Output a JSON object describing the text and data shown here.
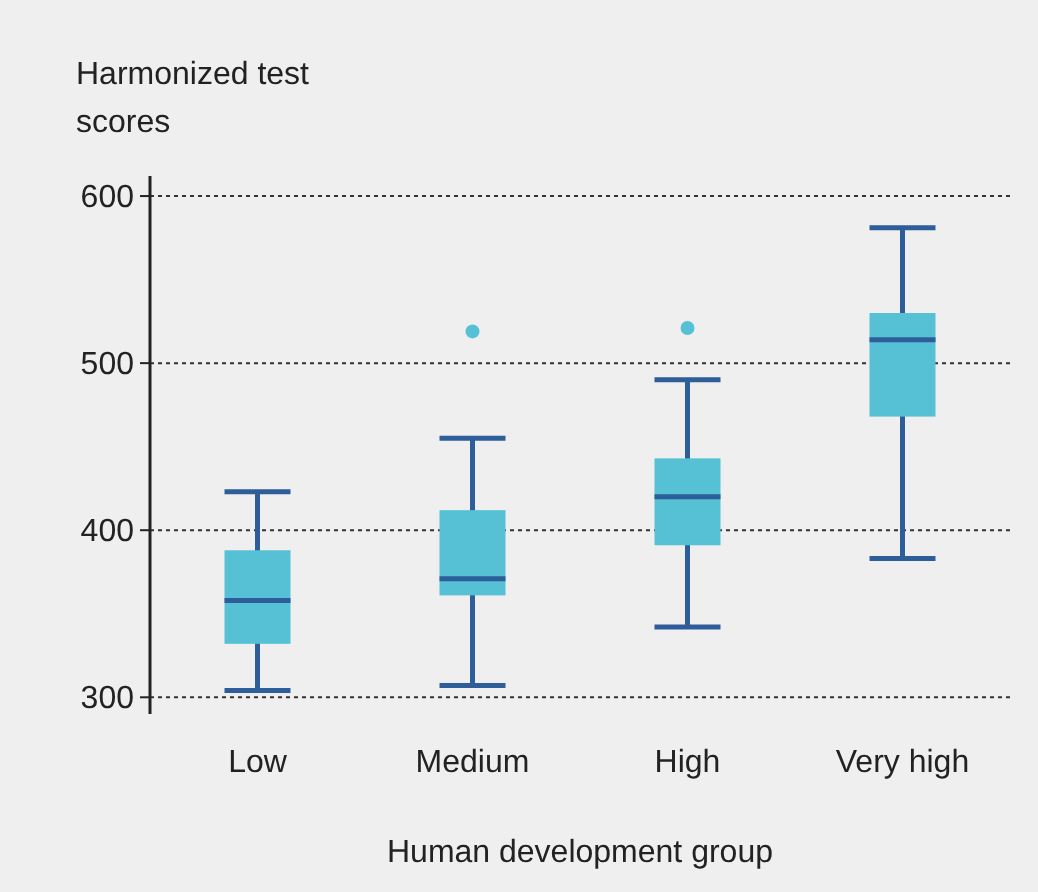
{
  "chart_data": {
    "type": "box",
    "ylabel": "Harmonized test scores",
    "xlabel": "Human development group",
    "categories": [
      "Low",
      "Medium",
      "High",
      "Very high"
    ],
    "boxes": [
      {
        "low": 304,
        "q1": 332,
        "median": 358,
        "q3": 388,
        "high": 423
      },
      {
        "low": 307,
        "q1": 361,
        "median": 371,
        "q3": 412,
        "high": 455,
        "outliers": [
          519
        ]
      },
      {
        "low": 342,
        "q1": 391,
        "median": 420,
        "q3": 443,
        "high": 490,
        "outliers": [
          521
        ]
      },
      {
        "low": 383,
        "q1": 468,
        "median": 514,
        "q3": 530,
        "high": 581
      }
    ],
    "color": "#56c1d4",
    "ylim": [
      290,
      612
    ],
    "yticks": [
      300,
      400,
      500,
      600
    ],
    "grid": "y"
  }
}
